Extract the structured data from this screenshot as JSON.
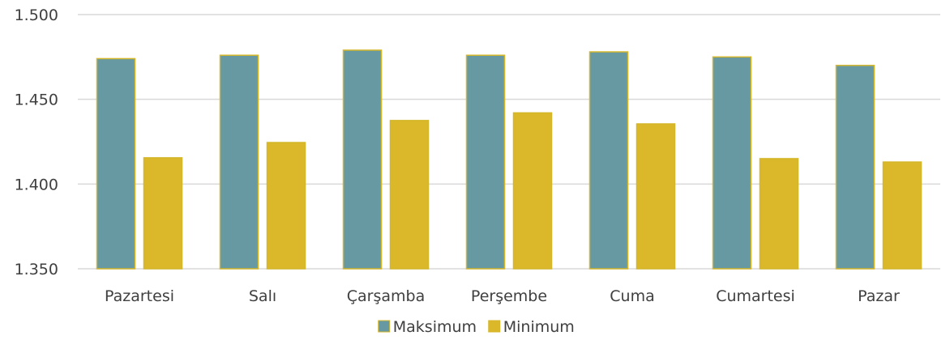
{
  "chart_data": {
    "type": "bar",
    "categories": [
      "Pazartesi",
      "Salı",
      "Çarşamba",
      "Perşembe",
      "Cuma",
      "Cumartesi",
      "Pazar"
    ],
    "series": [
      {
        "name": "Maksimum",
        "color": "#6699a1",
        "values": [
          1.474,
          1.476,
          1.479,
          1.476,
          1.478,
          1.475,
          1.47
        ]
      },
      {
        "name": "Minimum",
        "color": "#dbb829",
        "values": [
          1.4155,
          1.4245,
          1.4375,
          1.442,
          1.4355,
          1.415,
          1.413
        ]
      }
    ],
    "bar_stroke_color": "#d4b62a",
    "ylim": [
      1.35,
      1.5
    ],
    "yticks": [
      "1.350",
      "1.400",
      "1.450",
      "1.500"
    ],
    "ytick_values": [
      1.35,
      1.4,
      1.45,
      1.5
    ],
    "grid": true,
    "legend": "bottom-center"
  }
}
